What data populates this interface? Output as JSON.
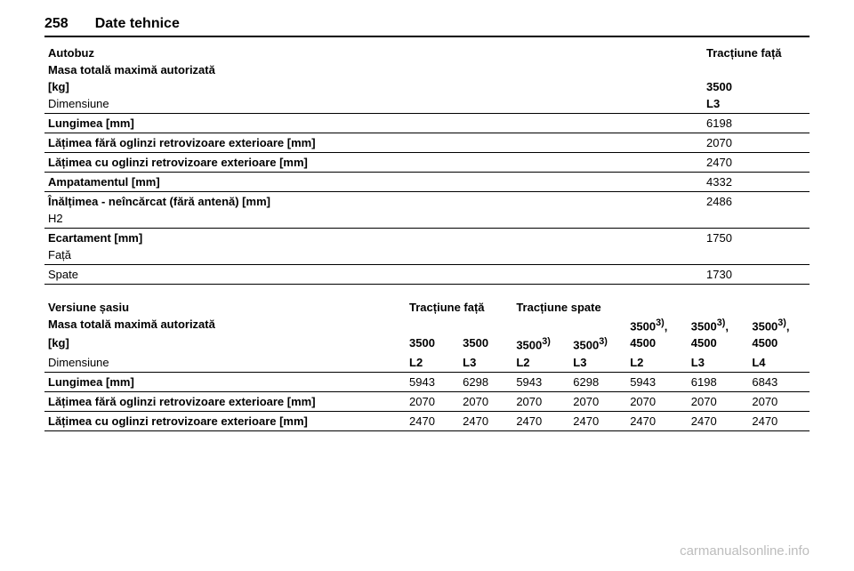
{
  "header": {
    "page_number": "258",
    "section_title": "Date tehnice"
  },
  "table1": {
    "heading_left": "Autobuz",
    "heading_right": "Tracțiune față",
    "mass_label_line1": "Masa totală maximă autorizată",
    "mass_label_line2": "[kg]",
    "mass_value": "3500",
    "dim_label": "Dimensiune",
    "dim_value": "L3",
    "rows": [
      {
        "label": "Lungimea [mm]",
        "value": "6198"
      },
      {
        "label": "Lățimea fără oglinzi retrovizoare exterioare [mm]",
        "value": "2070"
      },
      {
        "label": "Lățimea cu oglinzi retrovizoare exterioare [mm]",
        "value": "2470"
      },
      {
        "label": "Ampatamentul [mm]",
        "value": "4332"
      }
    ],
    "height_label": "Înălțimea - neîncărcat (fără antenă) [mm]",
    "height_sub": "H2",
    "height_value": "2486",
    "track_label": "Ecartament [mm]",
    "track_sub_front": "Față",
    "track_value_front": "1750",
    "track_sub_rear": "Spate",
    "track_value_rear": "1730"
  },
  "table2": {
    "heading_left": "Versiune șasiu",
    "heading_front": "Tracțiune față",
    "heading_rear": "Tracțiune spate",
    "mass_label_line1": "Masa totală maximă autorizată",
    "mass_label_line2": "[kg]",
    "mass_values": [
      "3500",
      "3500",
      "3500",
      "3500",
      "3500, 4500",
      "3500, 4500",
      "3500, 4500"
    ],
    "mass_sup": [
      "",
      "",
      "3)",
      "3)",
      "3)",
      "3)",
      "3)"
    ],
    "dim_label": "Dimensiune",
    "dim_values": [
      "L2",
      "L3",
      "L2",
      "L3",
      "L2",
      "L3",
      "L4"
    ],
    "rows": [
      {
        "label": "Lungimea [mm]",
        "values": [
          "5943",
          "6298",
          "5943",
          "6298",
          "5943",
          "6198",
          "6843"
        ]
      },
      {
        "label": "Lățimea fără oglinzi retrovizoare exterioare [mm]",
        "values": [
          "2070",
          "2070",
          "2070",
          "2070",
          "2070",
          "2070",
          "2070"
        ]
      },
      {
        "label": "Lățimea cu oglinzi retrovizoare exterioare [mm]",
        "values": [
          "2470",
          "2470",
          "2470",
          "2470",
          "2470",
          "2470",
          "2470"
        ]
      }
    ]
  },
  "watermark": "carmanualsonline.info"
}
